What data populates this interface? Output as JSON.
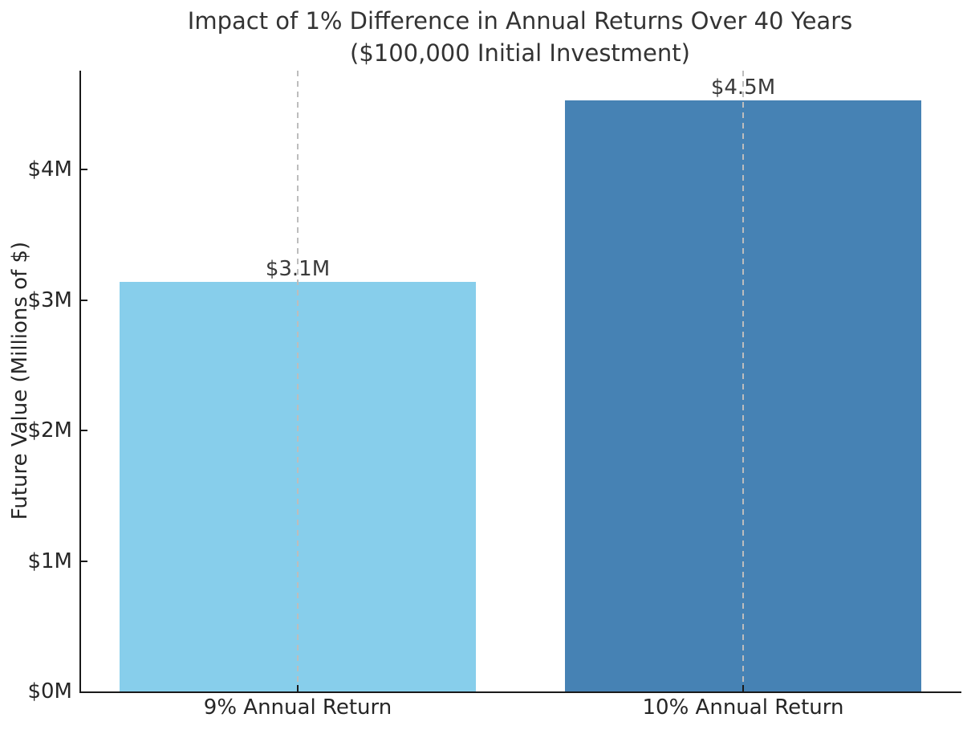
{
  "figure": {
    "title_line1": "Impact of 1% Difference in Annual Returns Over 40 Years",
    "title_line2": "($100,000 Initial Investment)",
    "background_color": "#ffffff",
    "text_color": "#262626",
    "spine_color": "#1a1a1a",
    "grid_color": "#bdbdbd"
  },
  "chart_data": {
    "type": "bar",
    "title": "Impact of 1% Difference in Annual Returns Over 40 Years\n($100,000 Initial Investment)",
    "categories": [
      "9% Annual Return",
      "10% Annual Return"
    ],
    "values": [
      3.14,
      4.53
    ],
    "value_labels": [
      "$3.1M",
      "$4.5M"
    ],
    "bar_colors": [
      "#87CEEB",
      "#4682B4"
    ],
    "xlabel": "",
    "ylabel": "Future Value (Millions of $)",
    "ylim": [
      0,
      4.76
    ],
    "yticks": [
      {
        "value": 0,
        "label": "$0M"
      },
      {
        "value": 1,
        "label": "$1M"
      },
      {
        "value": 2,
        "label": "$2M"
      },
      {
        "value": 3,
        "label": "$3M"
      },
      {
        "value": 4,
        "label": "$4M"
      }
    ],
    "grid": {
      "vertical_dashed_at_bar_centers": true,
      "horizontal_gridlines": false
    },
    "legend": "none",
    "spines": {
      "left": true,
      "bottom": true,
      "top": false,
      "right": false
    },
    "tick_direction": "in"
  }
}
